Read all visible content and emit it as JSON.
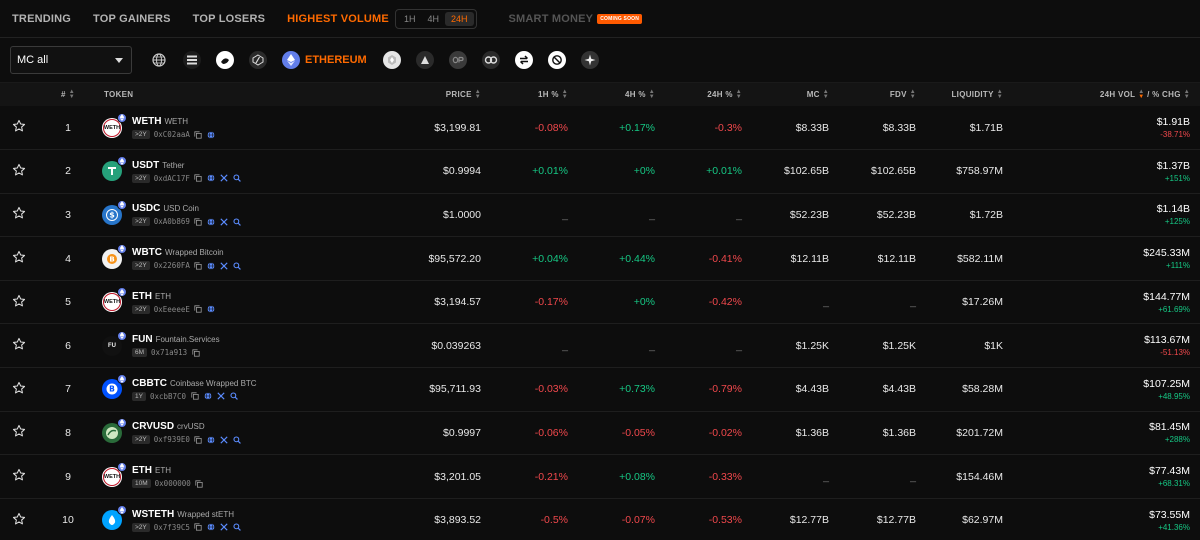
{
  "tabs": {
    "trending": "TRENDING",
    "top_gainers": "TOP GAINERS",
    "top_losers": "TOP LOSERS",
    "highest_volume": "HIGHEST VOLUME",
    "tf_1h": "1H",
    "tf_4h": "4H",
    "tf_24h": "24H",
    "smart_money": "SMART MONEY",
    "coming_soon": "COMING SOON"
  },
  "filter": {
    "mc_select": "MC all",
    "active_chain": "ETHEREUM"
  },
  "columns": {
    "num": "#",
    "token": "TOKEN",
    "price": "PRICE",
    "h1": "1H %",
    "h4": "4H %",
    "h24": "24H %",
    "mc": "MC",
    "fdv": "FDV",
    "liquidity": "LIQUIDITY",
    "vol": "24H VOL",
    "chg": "/ % CHG"
  },
  "colors": {
    "accent": "#ff6a00",
    "positive": "#16c784",
    "negative": "#f0484c"
  },
  "rows": [
    {
      "rank": "1",
      "symbol": "WETH",
      "name": "WETH",
      "age": ">2Y",
      "addr": "0xC02aaA",
      "icons": [
        "copy",
        "web"
      ],
      "logo": "weth",
      "price": "$3,199.81",
      "h1": "-0.08%",
      "h1c": "neg",
      "h4": "+0.17%",
      "h4c": "pos",
      "h24": "-0.3%",
      "h24c": "neg",
      "mc": "$8.33B",
      "fdv": "$8.33B",
      "liq": "$1.71B",
      "vol": "$1.91B",
      "chg": "-38.71%",
      "chgc": "neg"
    },
    {
      "rank": "2",
      "symbol": "USDT",
      "name": "Tether",
      "age": ">2Y",
      "addr": "0xdAC17F",
      "icons": [
        "copy",
        "web",
        "x",
        "search"
      ],
      "logo": "usdt",
      "price": "$0.9994",
      "h1": "+0.01%",
      "h1c": "pos",
      "h4": "+0%",
      "h4c": "pos",
      "h24": "+0.01%",
      "h24c": "pos",
      "mc": "$102.65B",
      "fdv": "$102.65B",
      "liq": "$758.97M",
      "vol": "$1.37B",
      "chg": "+151%",
      "chgc": "pos"
    },
    {
      "rank": "3",
      "symbol": "USDC",
      "name": "USD Coin",
      "age": ">2Y",
      "addr": "0xA0b869",
      "icons": [
        "copy",
        "web",
        "x",
        "search"
      ],
      "logo": "usdc",
      "price": "$1.0000",
      "h1": "_",
      "h1c": "dash",
      "h4": "_",
      "h4c": "dash",
      "h24": "_",
      "h24c": "dash",
      "mc": "$52.23B",
      "fdv": "$52.23B",
      "liq": "$1.72B",
      "vol": "$1.14B",
      "chg": "+125%",
      "chgc": "pos"
    },
    {
      "rank": "4",
      "symbol": "WBTC",
      "name": "Wrapped Bitcoin",
      "age": ">2Y",
      "addr": "0x2260FA",
      "icons": [
        "copy",
        "web",
        "x",
        "search"
      ],
      "logo": "wbtc",
      "price": "$95,572.20",
      "h1": "+0.04%",
      "h1c": "pos",
      "h4": "+0.44%",
      "h4c": "pos",
      "h24": "-0.41%",
      "h24c": "neg",
      "mc": "$12.11B",
      "fdv": "$12.11B",
      "liq": "$582.11M",
      "vol": "$245.33M",
      "chg": "+111%",
      "chgc": "pos"
    },
    {
      "rank": "5",
      "symbol": "ETH",
      "name": "ETH",
      "age": ">2Y",
      "addr": "0xEeeeeE",
      "icons": [
        "copy",
        "web"
      ],
      "logo": "weth",
      "price": "$3,194.57",
      "h1": "-0.17%",
      "h1c": "neg",
      "h4": "+0%",
      "h4c": "pos",
      "h24": "-0.42%",
      "h24c": "neg",
      "mc": "_",
      "fdv": "_",
      "liq": "$17.26M",
      "vol": "$144.77M",
      "chg": "+61.69%",
      "chgc": "pos"
    },
    {
      "rank": "6",
      "symbol": "FUN",
      "name": "Fountain.Services",
      "age": "6M",
      "addr": "0x71a913",
      "icons": [
        "copy"
      ],
      "logo": "fun",
      "price": "$0.039263",
      "h1": "_",
      "h1c": "dash",
      "h4": "_",
      "h4c": "dash",
      "h24": "_",
      "h24c": "dash",
      "mc": "$1.25K",
      "fdv": "$1.25K",
      "liq": "$1K",
      "vol": "$113.67M",
      "chg": "-51.13%",
      "chgc": "neg"
    },
    {
      "rank": "7",
      "symbol": "CBBTC",
      "name": "Coinbase Wrapped BTC",
      "age": "1Y",
      "addr": "0xcbB7C0",
      "icons": [
        "copy",
        "web",
        "x",
        "search"
      ],
      "logo": "cbbtc",
      "price": "$95,711.93",
      "h1": "-0.03%",
      "h1c": "neg",
      "h4": "+0.73%",
      "h4c": "pos",
      "h24": "-0.79%",
      "h24c": "neg",
      "mc": "$4.43B",
      "fdv": "$4.43B",
      "liq": "$58.28M",
      "vol": "$107.25M",
      "chg": "+48.95%",
      "chgc": "pos"
    },
    {
      "rank": "8",
      "symbol": "CRVUSD",
      "name": "crvUSD",
      "age": ">2Y",
      "addr": "0xf939E0",
      "icons": [
        "copy",
        "web",
        "x",
        "search"
      ],
      "logo": "crvusd",
      "price": "$0.9997",
      "h1": "-0.06%",
      "h1c": "neg",
      "h4": "-0.05%",
      "h4c": "neg",
      "h24": "-0.02%",
      "h24c": "neg",
      "mc": "$1.36B",
      "fdv": "$1.36B",
      "liq": "$201.72M",
      "vol": "$81.45M",
      "chg": "+288%",
      "chgc": "pos"
    },
    {
      "rank": "9",
      "symbol": "ETH",
      "name": "ETH",
      "age": "10M",
      "addr": "0x000000",
      "icons": [
        "copy"
      ],
      "logo": "weth",
      "price": "$3,201.05",
      "h1": "-0.21%",
      "h1c": "neg",
      "h4": "+0.08%",
      "h4c": "pos",
      "h24": "-0.33%",
      "h24c": "neg",
      "mc": "_",
      "fdv": "_",
      "liq": "$154.46M",
      "vol": "$77.43M",
      "chg": "+68.31%",
      "chgc": "pos"
    },
    {
      "rank": "10",
      "symbol": "WSTETH",
      "name": "Wrapped stETH",
      "age": ">2Y",
      "addr": "0x7f39C5",
      "icons": [
        "copy",
        "web",
        "x",
        "search"
      ],
      "logo": "wsteth",
      "price": "$3,893.52",
      "h1": "-0.5%",
      "h1c": "neg",
      "h4": "-0.07%",
      "h4c": "neg",
      "h24": "-0.53%",
      "h24c": "neg",
      "mc": "$12.77B",
      "fdv": "$12.77B",
      "liq": "$62.97M",
      "vol": "$73.55M",
      "chg": "+41.36%",
      "chgc": "pos"
    }
  ]
}
